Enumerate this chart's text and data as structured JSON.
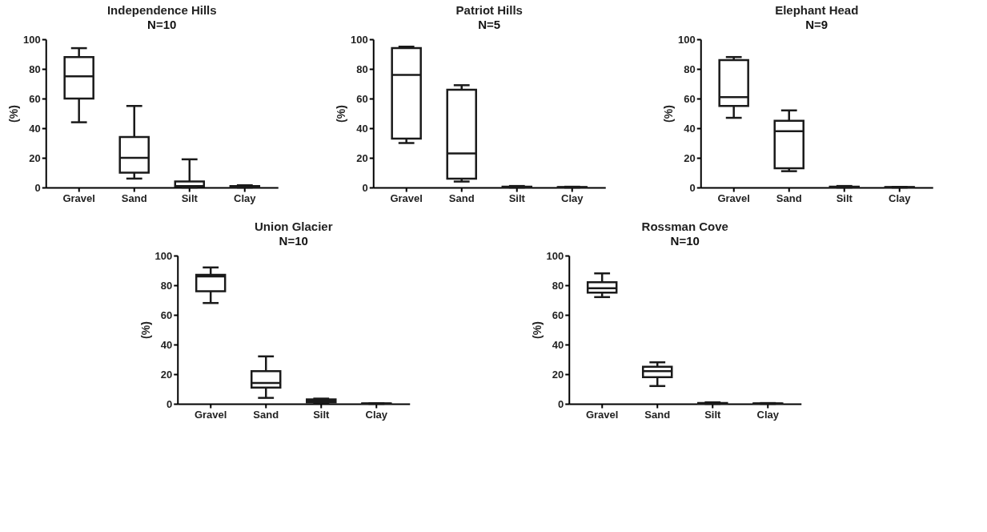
{
  "chart_data": [
    {
      "type": "box",
      "title": "Independence Hills",
      "subtitle": "N=10",
      "ylabel": "(%)",
      "categories": [
        "Gravel",
        "Sand",
        "Silt",
        "Clay"
      ],
      "ylim": [
        0,
        100
      ],
      "yticks": [
        0,
        20,
        40,
        60,
        80,
        100
      ],
      "boxes": [
        {
          "low": 44,
          "q1": 60,
          "median": 75,
          "q3": 88,
          "high": 94
        },
        {
          "low": 6,
          "q1": 10,
          "median": 20,
          "q3": 34,
          "high": 55
        },
        {
          "low": 0,
          "q1": 0.5,
          "median": 1,
          "q3": 4,
          "high": 19
        },
        {
          "low": 0,
          "q1": 0.2,
          "median": 0.5,
          "q3": 1,
          "high": 1.5
        }
      ]
    },
    {
      "type": "box",
      "title": "Patriot Hills",
      "subtitle": "N=5",
      "ylabel": "(%)",
      "categories": [
        "Gravel",
        "Sand",
        "Silt",
        "Clay"
      ],
      "ylim": [
        0,
        100
      ],
      "yticks": [
        0,
        20,
        40,
        60,
        80,
        100
      ],
      "boxes": [
        {
          "low": 30,
          "q1": 33,
          "median": 76,
          "q3": 94,
          "high": 95
        },
        {
          "low": 4,
          "q1": 6,
          "median": 23,
          "q3": 66,
          "high": 69
        },
        {
          "low": 0,
          "q1": 0.2,
          "median": 0.4,
          "q3": 0.6,
          "high": 1
        },
        {
          "low": 0,
          "q1": 0.1,
          "median": 0.2,
          "q3": 0.3,
          "high": 0.5
        }
      ]
    },
    {
      "type": "box",
      "title": "Elephant Head",
      "subtitle": "N=9",
      "ylabel": "(%)",
      "categories": [
        "Gravel",
        "Sand",
        "Silt",
        "Clay"
      ],
      "ylim": [
        0,
        100
      ],
      "yticks": [
        0,
        20,
        40,
        60,
        80,
        100
      ],
      "boxes": [
        {
          "low": 47,
          "q1": 55,
          "median": 61,
          "q3": 86,
          "high": 88
        },
        {
          "low": 11,
          "q1": 13,
          "median": 38,
          "q3": 45,
          "high": 52
        },
        {
          "low": 0,
          "q1": 0.2,
          "median": 0.4,
          "q3": 0.6,
          "high": 1
        },
        {
          "low": 0,
          "q1": 0.1,
          "median": 0.2,
          "q3": 0.3,
          "high": 0.4
        }
      ]
    },
    {
      "type": "box",
      "title": "Union Glacier",
      "subtitle": "N=10",
      "ylabel": "(%)",
      "categories": [
        "Gravel",
        "Sand",
        "Silt",
        "Clay"
      ],
      "ylim": [
        0,
        100
      ],
      "yticks": [
        0,
        20,
        40,
        60,
        80,
        100
      ],
      "boxes": [
        {
          "low": 68,
          "q1": 76,
          "median": 86,
          "q3": 87,
          "high": 92
        },
        {
          "low": 4,
          "q1": 11,
          "median": 14,
          "q3": 22,
          "high": 32
        },
        {
          "low": 0.5,
          "q1": 1,
          "median": 2,
          "q3": 3,
          "high": 3.5
        },
        {
          "low": 0,
          "q1": 0.1,
          "median": 0.2,
          "q3": 0.3,
          "high": 0.4
        }
      ]
    },
    {
      "type": "box",
      "title": "Rossman Cove",
      "subtitle": "N=10",
      "ylabel": "(%)",
      "categories": [
        "Gravel",
        "Sand",
        "Silt",
        "Clay"
      ],
      "ylim": [
        0,
        100
      ],
      "yticks": [
        0,
        20,
        40,
        60,
        80,
        100
      ],
      "boxes": [
        {
          "low": 72,
          "q1": 75,
          "median": 78,
          "q3": 82,
          "high": 88
        },
        {
          "low": 12,
          "q1": 18,
          "median": 22,
          "q3": 25,
          "high": 28
        },
        {
          "low": 0,
          "q1": 0.2,
          "median": 0.4,
          "q3": 0.6,
          "high": 1
        },
        {
          "low": 0,
          "q1": 0.1,
          "median": 0.2,
          "q3": 0.3,
          "high": 0.5
        }
      ]
    }
  ]
}
